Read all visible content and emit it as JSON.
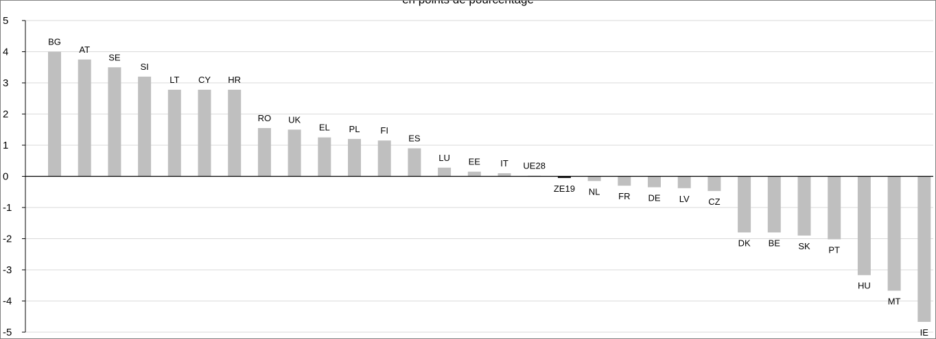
{
  "chart_data": {
    "type": "bar",
    "title": "en points de pourcentage",
    "xlabel": "",
    "ylabel": "",
    "ylim": [
      -5,
      5
    ],
    "yticks": [
      5,
      4,
      3,
      2,
      1,
      0,
      -1,
      -2,
      -3,
      -4,
      -5
    ],
    "grid": true,
    "categories": [
      "BG",
      "AT",
      "SE",
      "SI",
      "LT",
      "CY",
      "HR",
      "RO",
      "UK",
      "EL",
      "PL",
      "FI",
      "ES",
      "LU",
      "EE",
      "IT",
      "UE28",
      "ZE19",
      "NL",
      "FR",
      "DE",
      "LV",
      "CZ",
      "DK",
      "BE",
      "SK",
      "PT",
      "HU",
      "MT",
      "IE"
    ],
    "values": [
      4.0,
      3.75,
      3.5,
      3.2,
      2.78,
      2.78,
      2.78,
      1.55,
      1.5,
      1.25,
      1.2,
      1.15,
      0.9,
      0.28,
      0.15,
      0.1,
      0.02,
      -0.05,
      -0.15,
      -0.3,
      -0.35,
      -0.38,
      -0.47,
      -1.8,
      -1.8,
      -1.9,
      -2.02,
      -3.17,
      -3.67,
      -4.67
    ],
    "colors": {
      "bar": "#bfbfbf",
      "highlight": "#000000",
      "grid": "#d9d9d9",
      "axis": "#000000"
    },
    "highlight": "ZE19"
  }
}
